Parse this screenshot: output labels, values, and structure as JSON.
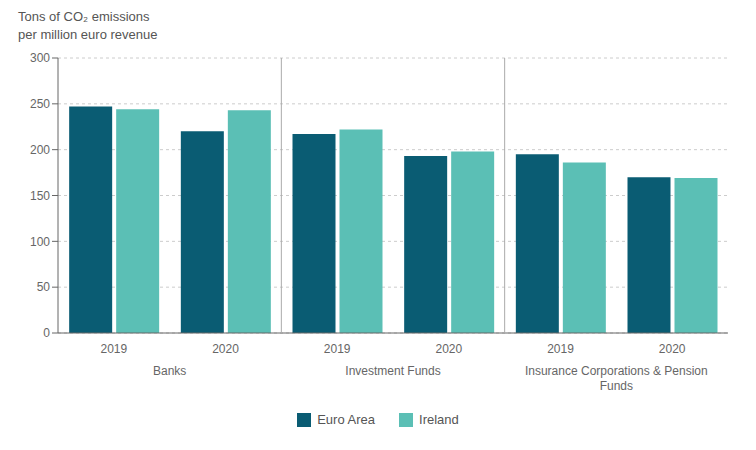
{
  "chart_data": {
    "type": "bar",
    "title": "Tons of CO₂  emissions",
    "subtitle": "per million  euro revenue",
    "categories": [
      "2019",
      "2020",
      "2019",
      "2020",
      "2019",
      "2020"
    ],
    "category_groups": [
      "Banks",
      "Investment Funds",
      "Insurance Corporations & Pension\nFunds"
    ],
    "series": [
      {
        "name": "Euro Area",
        "color": "#0a5c73",
        "values": [
          247,
          220,
          217,
          193,
          195,
          170
        ]
      },
      {
        "name": "Ireland",
        "color": "#5bbfb5",
        "values": [
          244,
          243,
          222,
          198,
          186,
          169
        ]
      }
    ],
    "ylim": [
      0,
      300
    ],
    "yticks": [
      0,
      50,
      100,
      150,
      200,
      250,
      300
    ],
    "grid": true,
    "legend": "bottom"
  }
}
